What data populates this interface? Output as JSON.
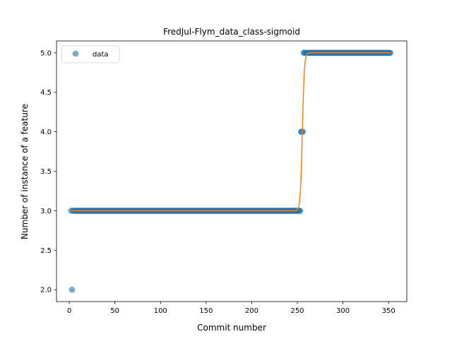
{
  "chart_data": {
    "type": "scatter",
    "title": "FredJul-Flym_data_class-sigmoid",
    "xlabel": "Commit number",
    "ylabel": "Number of instance of a feature",
    "xlim": [
      -14,
      370
    ],
    "ylim": [
      1.85,
      5.15
    ],
    "xticks": [
      0,
      50,
      100,
      150,
      200,
      250,
      300,
      350
    ],
    "xtick_labels": [
      "0",
      "50",
      "100",
      "150",
      "200",
      "250",
      "300",
      "350"
    ],
    "yticks": [
      2.0,
      2.5,
      3.0,
      3.5,
      4.0,
      4.5,
      5.0
    ],
    "ytick_labels": [
      "2.0",
      "2.5",
      "3.0",
      "3.5",
      "4.0",
      "4.5",
      "5.0"
    ],
    "grid": false,
    "legend": {
      "position": "top-left",
      "entries": [
        "data"
      ]
    },
    "series": [
      {
        "name": "data",
        "kind": "scatter",
        "color": "#1f77b4",
        "alpha": 0.6,
        "segments": [
          {
            "x_start": 2,
            "x_end": 2,
            "y": 3.0
          },
          {
            "x_start": 3,
            "x_end": 3,
            "y": 2.0
          },
          {
            "x_start": 4,
            "x_end": 253,
            "y": 3.0
          },
          {
            "x_start": 254,
            "x_end": 256,
            "y": 4.0
          },
          {
            "x_start": 257,
            "x_end": 352,
            "y": 5.0
          }
        ]
      },
      {
        "kind": "line",
        "color": "#ff7f0e",
        "fit": {
          "model": "sigmoid",
          "low": 3.0,
          "high": 5.0,
          "midpoint": 255.5,
          "steepness": 0.9,
          "x_start": 2,
          "x_end": 352
        }
      }
    ]
  }
}
